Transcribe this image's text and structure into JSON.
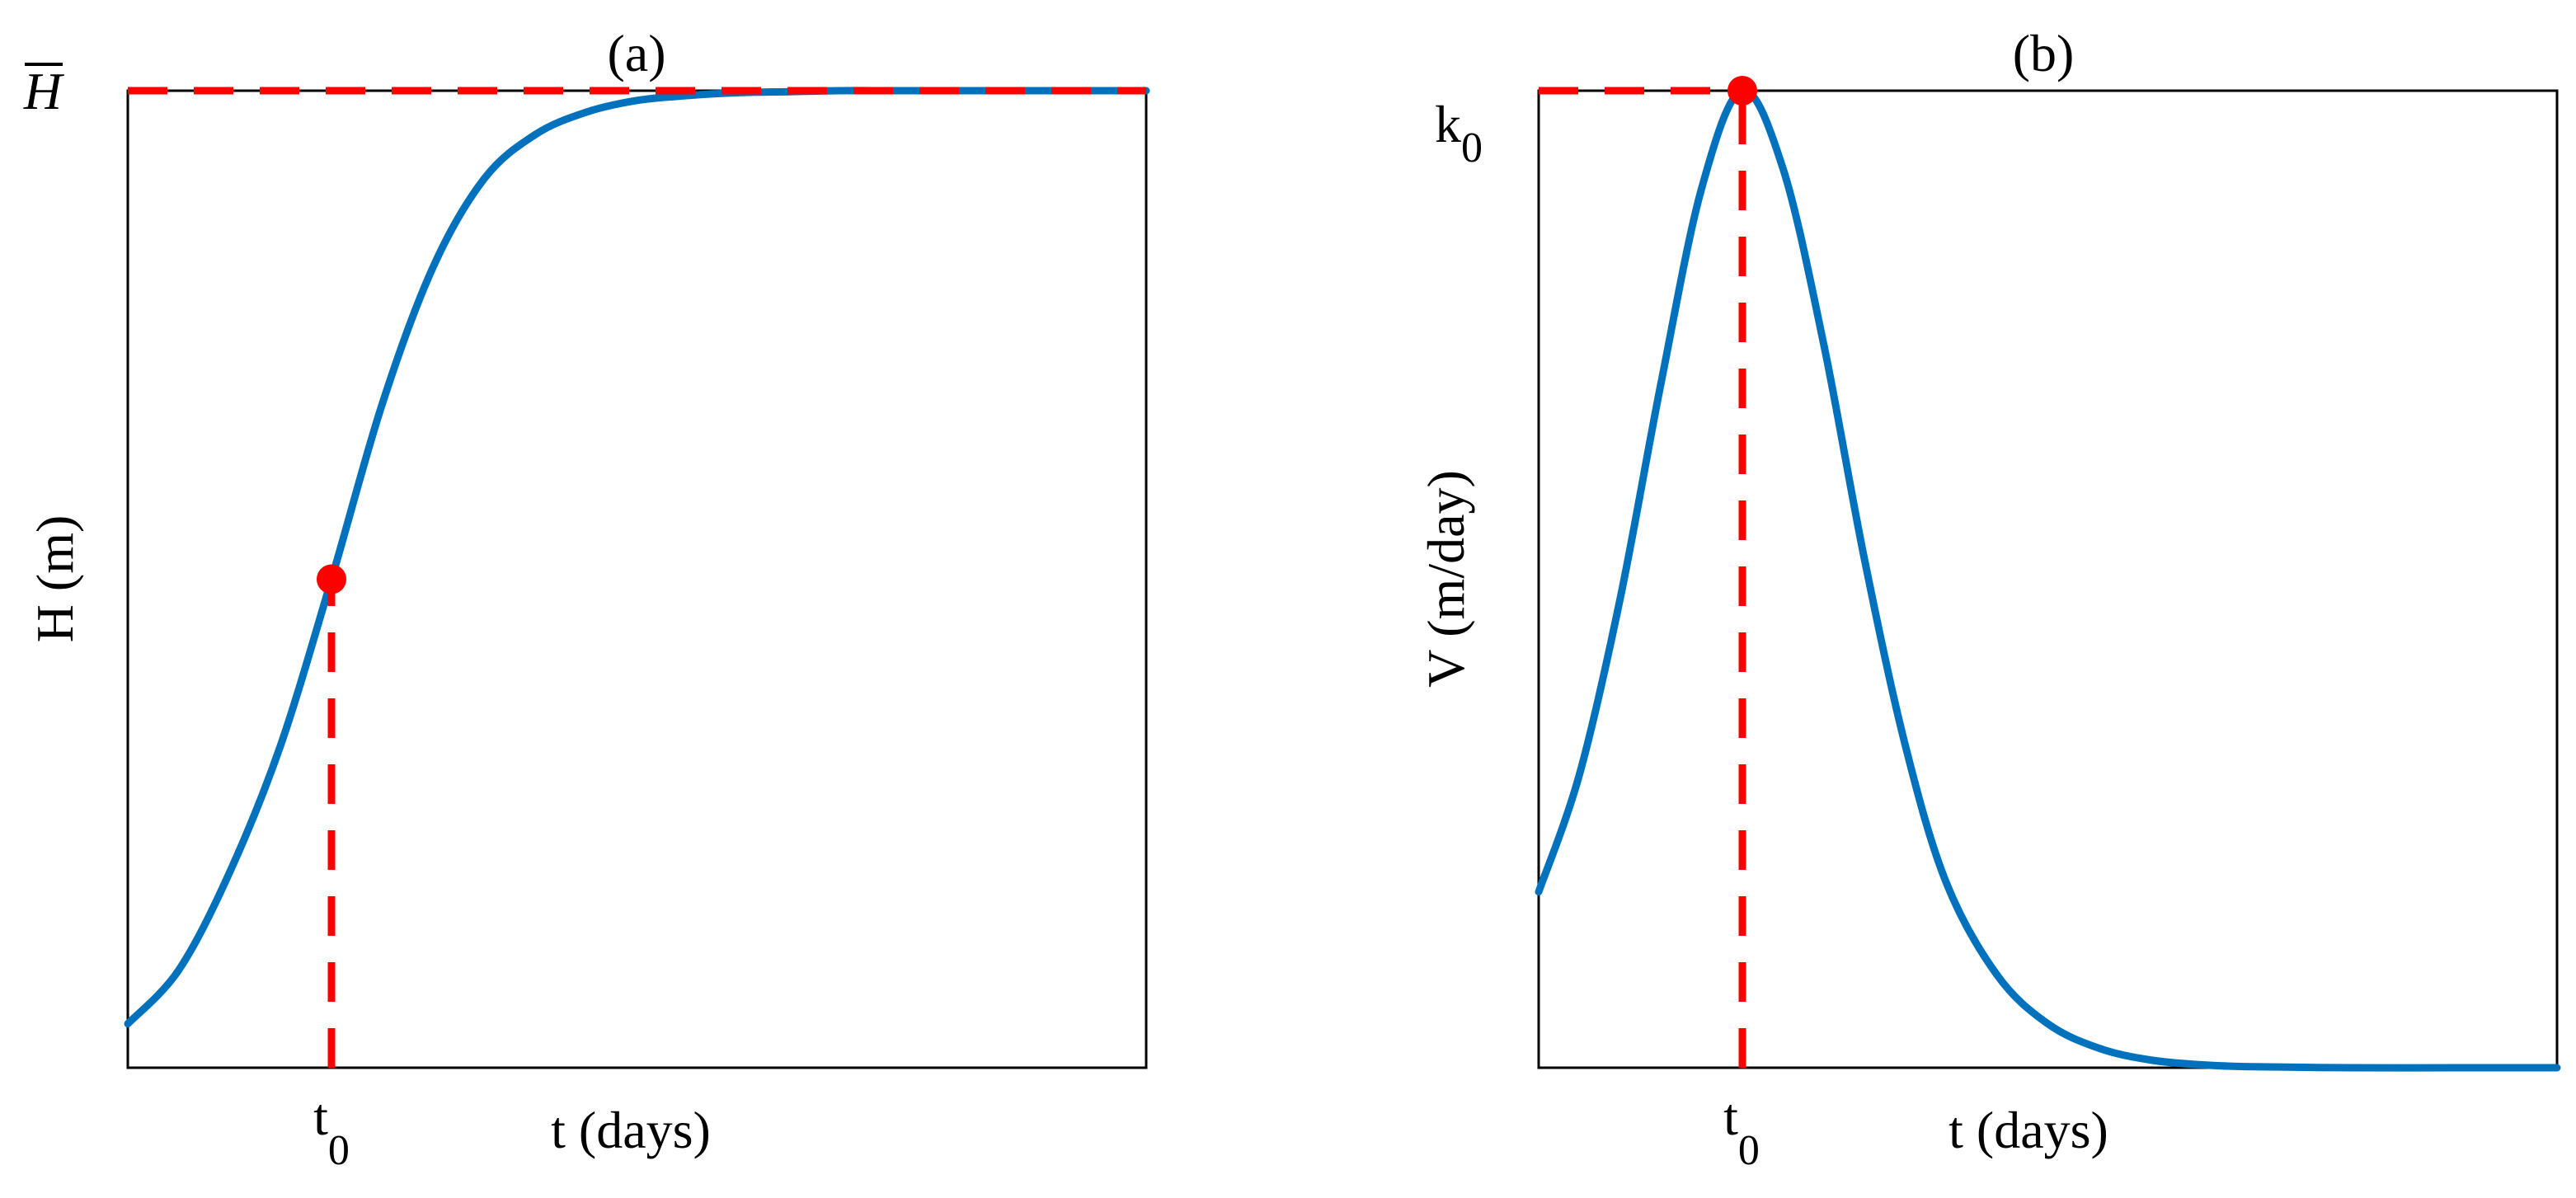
{
  "colors": {
    "curve": "#0072BD",
    "marker": "#FF0000",
    "axes": "#000000",
    "background": "#FFFFFF"
  },
  "chart_data": [
    {
      "type": "line",
      "panel_label": "(a)",
      "xlabel": "t (days)",
      "ylabel": "H (m)",
      "x_tick_label_base": "t",
      "x_tick_label_sub": "0",
      "y_tick_label": "H",
      "y_tick_has_overbar": true,
      "xlim": [
        0,
        1
      ],
      "ylim": [
        0,
        1
      ],
      "grid": false,
      "legend": "none",
      "series": [
        {
          "style": "solid",
          "x": [
            0,
            0.05,
            0.1,
            0.15,
            0.2,
            0.25,
            0.3,
            0.35,
            0.4,
            0.45,
            0.5,
            0.55,
            0.6,
            0.65,
            0.7,
            0.75,
            0.8,
            0.85,
            0.9,
            0.95,
            1.0
          ],
          "y": [
            0.045,
            0.1,
            0.2,
            0.33,
            0.5,
            0.68,
            0.82,
            0.91,
            0.955,
            0.978,
            0.99,
            0.995,
            0.998,
            0.999,
            1.0,
            1.0,
            1.0,
            1.0,
            1.0,
            1.0,
            1.0
          ]
        }
      ],
      "reference_lines": [
        {
          "orientation": "horizontal",
          "style": "dashed",
          "y": 1.0,
          "x_from": 0,
          "x_to": 1
        },
        {
          "orientation": "vertical",
          "style": "dashed",
          "x": 0.2,
          "y_from": 0,
          "y_to": 0.5
        }
      ],
      "markers": [
        {
          "x": 0.2,
          "y": 0.5
        }
      ]
    },
    {
      "type": "line",
      "panel_label": "(b)",
      "xlabel": "t (days)",
      "ylabel": "V (m/day)",
      "x_tick_label_base": "t",
      "x_tick_label_sub": "0",
      "y_tick_label_base": "k",
      "y_tick_label_sub": "0",
      "xlim": [
        0,
        1
      ],
      "ylim": [
        0,
        1
      ],
      "grid": false,
      "legend": "none",
      "series": [
        {
          "style": "solid",
          "x": [
            0,
            0.04,
            0.08,
            0.12,
            0.16,
            0.2,
            0.24,
            0.28,
            0.32,
            0.36,
            0.4,
            0.45,
            0.5,
            0.55,
            0.6,
            0.65,
            0.7,
            0.8,
            0.9,
            1.0
          ],
          "y": [
            0.18,
            0.3,
            0.48,
            0.7,
            0.9,
            1.0,
            0.92,
            0.74,
            0.52,
            0.33,
            0.19,
            0.095,
            0.045,
            0.02,
            0.008,
            0.003,
            0.001,
            0.0,
            0.0,
            0.0
          ]
        }
      ],
      "reference_lines": [
        {
          "orientation": "horizontal",
          "style": "dashed",
          "y": 1.0,
          "x_from": 0,
          "x_to": 0.2
        },
        {
          "orientation": "vertical",
          "style": "dashed",
          "x": 0.2,
          "y_from": 0,
          "y_to": 1.0
        }
      ],
      "markers": [
        {
          "x": 0.2,
          "y": 1.0
        }
      ]
    }
  ]
}
